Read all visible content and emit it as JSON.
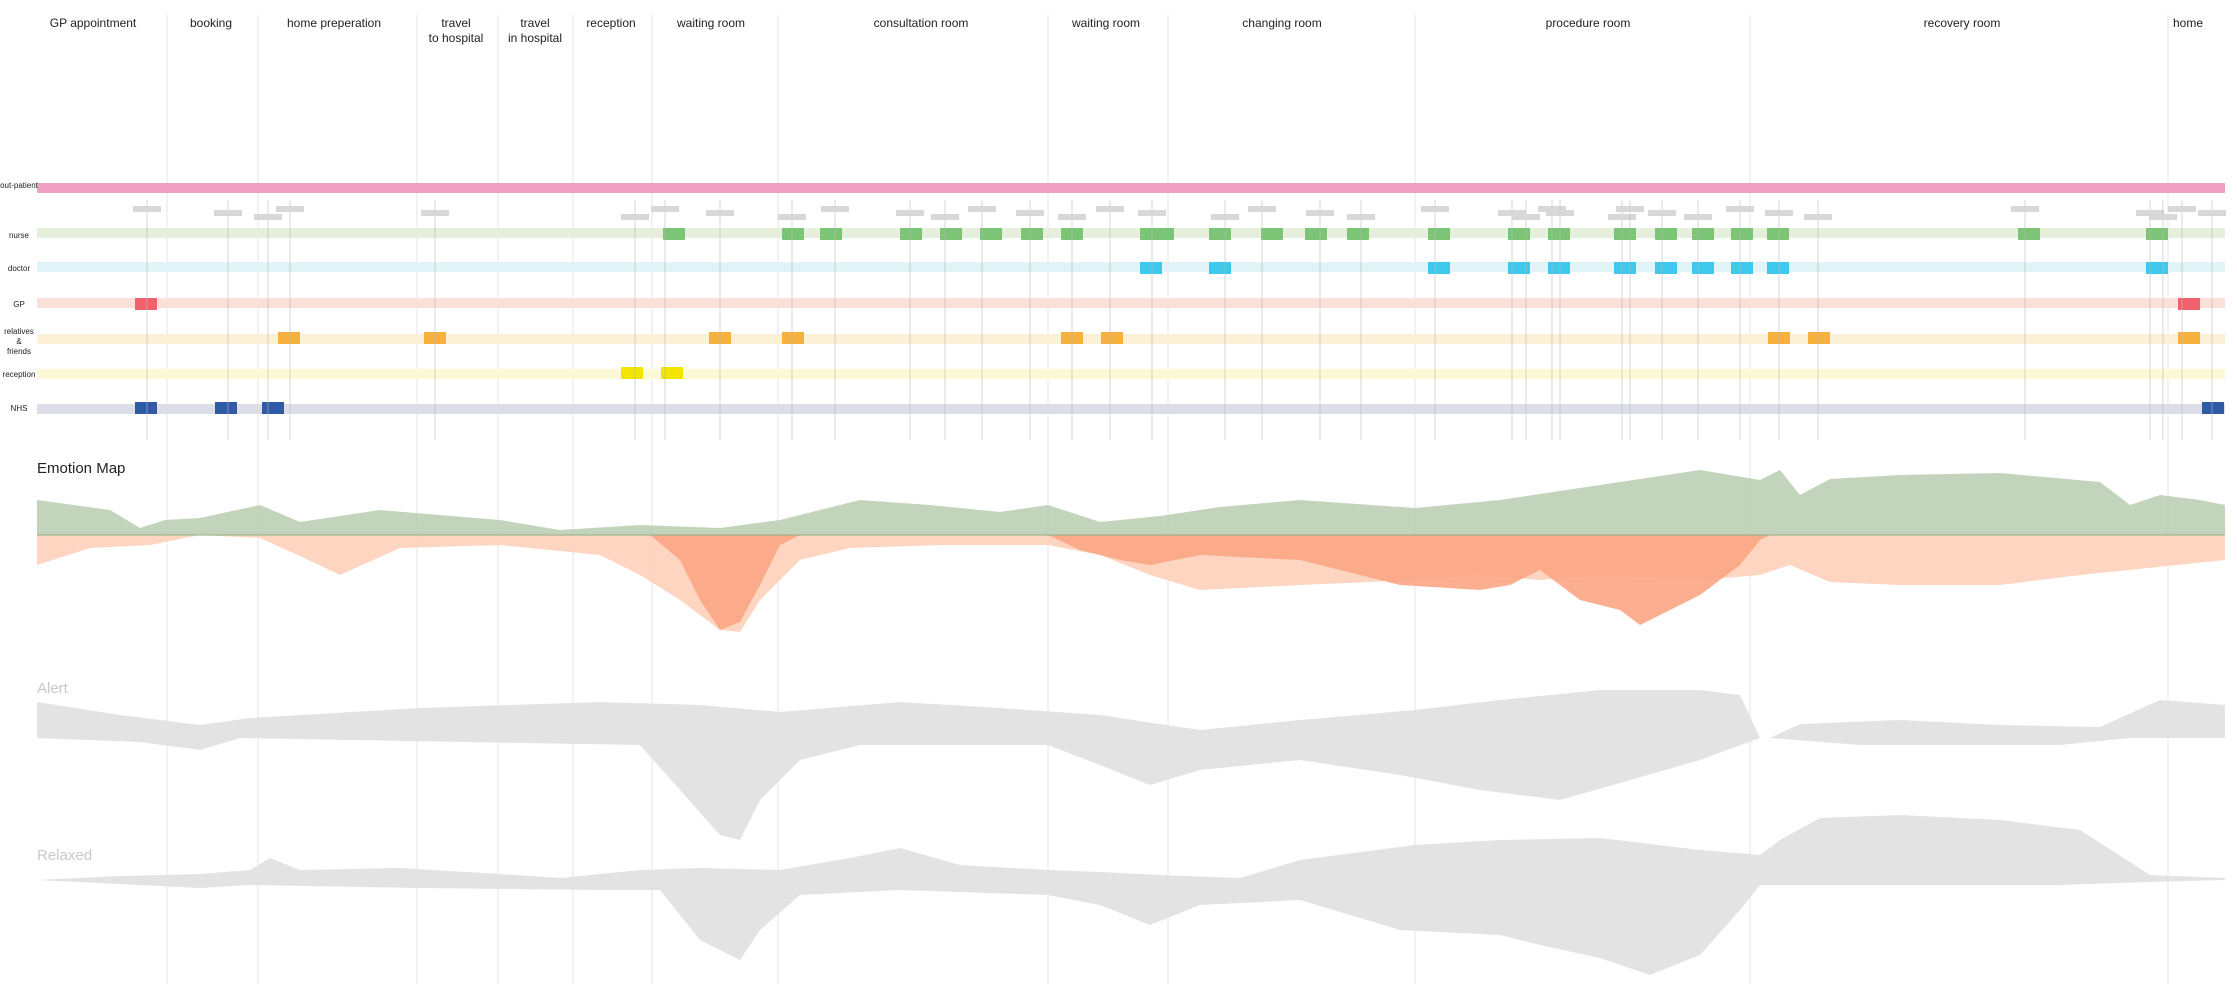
{
  "stages": [
    {
      "label": "GP appointment"
    },
    {
      "label": "booking"
    },
    {
      "label": "home preperation"
    },
    {
      "label": "travel\nto hospital"
    },
    {
      "label": "travel\nin hospital"
    },
    {
      "label": "reception"
    },
    {
      "label": "waiting room"
    },
    {
      "label": "consultation room"
    },
    {
      "label": "waiting room"
    },
    {
      "label": "changing room"
    },
    {
      "label": "procedure room"
    },
    {
      "label": "recovery room"
    },
    {
      "label": "home"
    }
  ],
  "lanes": [
    {
      "label": "out-patient",
      "color": "#f0a0c0"
    },
    {
      "label": "nurse",
      "color": "#e6efdc"
    },
    {
      "label": "doctor",
      "color": "#e0f3f7"
    },
    {
      "label": "GP",
      "color": "#fbe0da"
    },
    {
      "label": "relatives\n&\nfriends",
      "color": "#fcf0d6"
    },
    {
      "label": "reception",
      "color": "#fdf9d4"
    },
    {
      "label": "NHS",
      "color": "#dcdde8"
    }
  ],
  "touchpoint_colors": {
    "nurse": "#7cc576",
    "doctor": "#3ec9ec",
    "GP": "#f0616b",
    "relatives": "#f7b13f",
    "reception": "#f2e600",
    "NHS": "#2f5aa6"
  },
  "sections": {
    "emotion_map": "Emotion Map",
    "alert": "Alert",
    "relaxed": "Relaxed"
  },
  "chart_colors": {
    "positive": "#b9cdb0",
    "negative_light": "#fdd3bd",
    "negative_strong": "#fba584",
    "grey": "#e3e3e3"
  }
}
